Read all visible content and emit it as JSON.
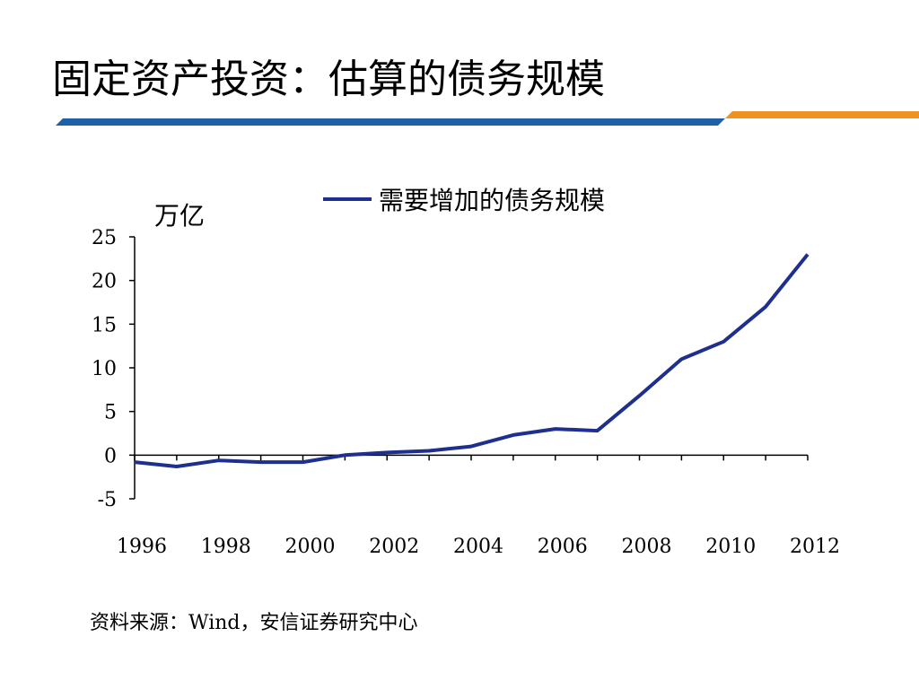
{
  "slide": {
    "title": "固定资产投资：估算的债务规模",
    "source": "资料来源：Wind，安信证券研究中心"
  },
  "colors": {
    "series_line": "#1f2f8f",
    "accent_blue": "#1f5fa8",
    "accent_orange": "#f0921e"
  },
  "chart_data": {
    "type": "line",
    "ylabel": "万亿",
    "ylim": [
      -5,
      25
    ],
    "yticks": [
      25,
      20,
      15,
      10,
      5,
      0,
      -5
    ],
    "xticks": [
      1996,
      1998,
      2000,
      2002,
      2004,
      2006,
      2008,
      2010,
      2012
    ],
    "x": [
      1996,
      1997,
      1998,
      1999,
      2000,
      2001,
      2002,
      2003,
      2004,
      2005,
      2006,
      2007,
      2008,
      2009,
      2010,
      2011,
      2012
    ],
    "series": [
      {
        "name": "需要增加的债务规模",
        "values": [
          -0.8,
          -1.3,
          -0.6,
          -0.8,
          -0.8,
          0.0,
          0.3,
          0.5,
          1.0,
          2.3,
          3.0,
          2.8,
          6.8,
          11.0,
          13.0,
          17.0,
          23.0
        ]
      }
    ],
    "legend_position": "top-center",
    "grid": false
  }
}
